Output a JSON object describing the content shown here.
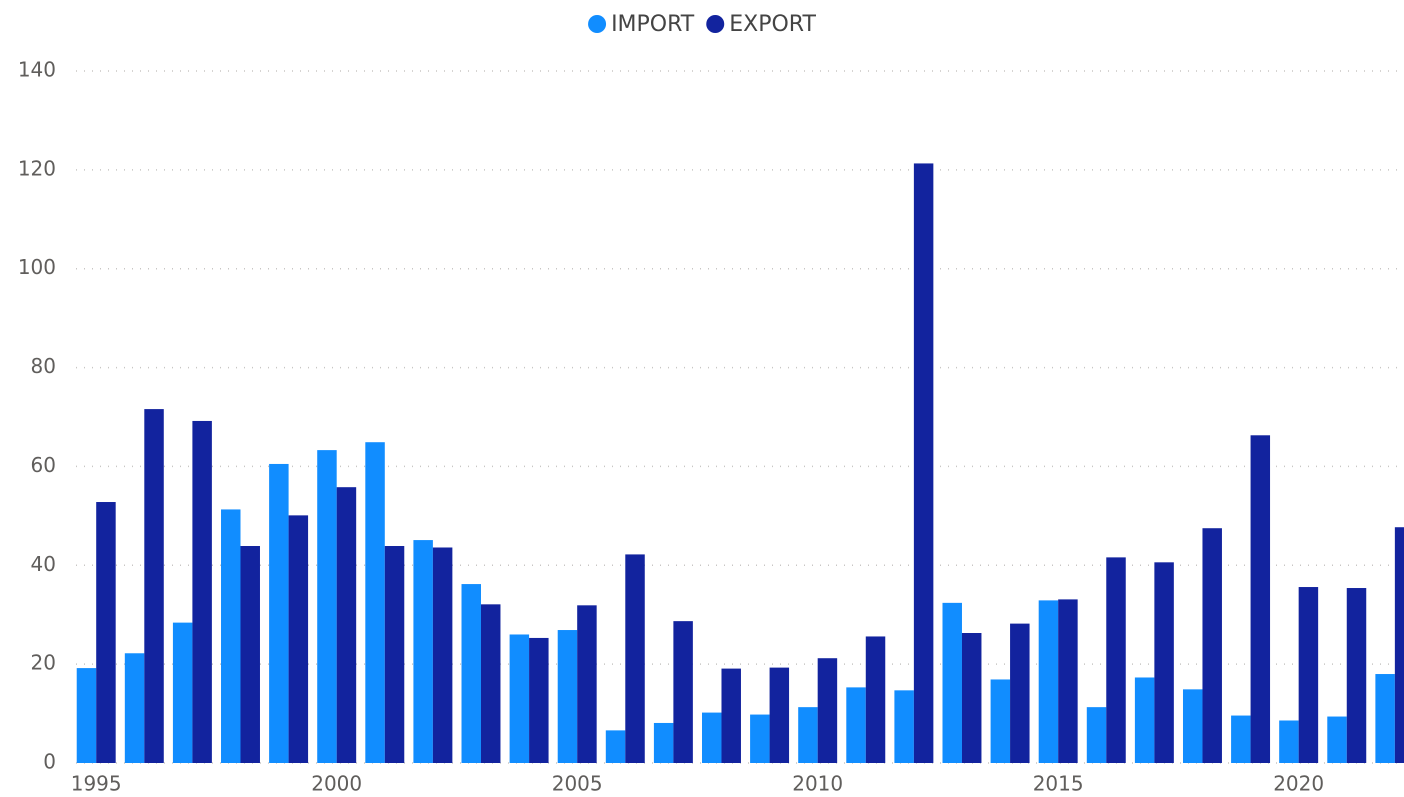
{
  "chart_data": {
    "type": "bar",
    "x": [
      1995,
      1996,
      1997,
      1998,
      1999,
      2000,
      2001,
      2002,
      2003,
      2004,
      2005,
      2006,
      2007,
      2008,
      2009,
      2010,
      2011,
      2012,
      2013,
      2014,
      2015,
      2016,
      2017,
      2018,
      2019,
      2020,
      2021,
      2022
    ],
    "series": [
      {
        "name": "IMPORT",
        "color": "#118dff",
        "values": [
          19.2,
          22.2,
          28.4,
          51.3,
          60.5,
          63.3,
          64.9,
          45.1,
          36.2,
          26.0,
          26.9,
          6.6,
          8.1,
          10.2,
          9.8,
          11.3,
          15.3,
          14.7,
          32.4,
          16.9,
          32.9,
          11.3,
          17.3,
          14.9,
          9.6,
          8.6,
          9.4,
          18.0
        ]
      },
      {
        "name": "EXPORT",
        "color": "#12239e",
        "values": [
          52.8,
          71.6,
          69.2,
          43.9,
          50.1,
          55.8,
          43.9,
          43.6,
          32.1,
          25.3,
          31.9,
          42.2,
          28.7,
          19.1,
          19.3,
          21.2,
          25.6,
          121.3,
          26.3,
          28.2,
          33.1,
          41.6,
          40.6,
          47.5,
          66.3,
          35.6,
          35.4,
          47.7
        ]
      }
    ],
    "xlim": [
      1994.58,
      2022.19
    ],
    "xticks": [
      1995,
      2000,
      2005,
      2010,
      2015,
      2020
    ],
    "ylim": [
      0,
      140
    ],
    "yticks": [
      0,
      20,
      40,
      60,
      80,
      100,
      120,
      140
    ],
    "grid": true,
    "legend": "top"
  }
}
